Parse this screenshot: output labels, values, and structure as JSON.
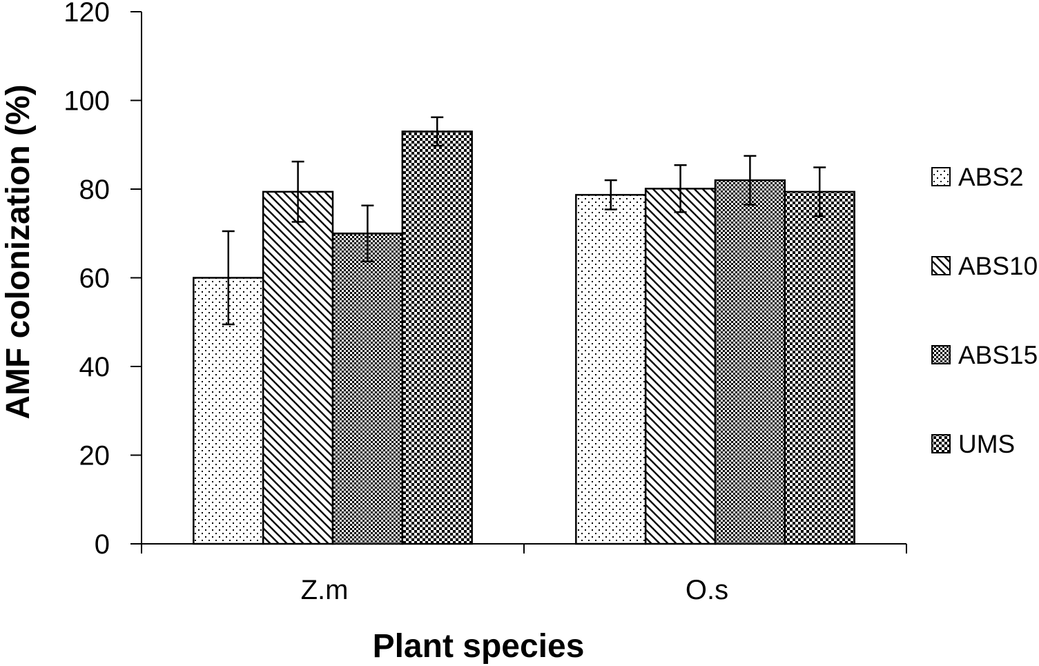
{
  "chart_data": {
    "type": "bar",
    "title": "",
    "xlabel": "Plant species",
    "ylabel": "AMF colonization (%)",
    "ylim": [
      0,
      120
    ],
    "yticks": [
      0,
      20,
      40,
      60,
      80,
      100,
      120
    ],
    "categories": [
      "Z.m",
      "O.s"
    ],
    "series": [
      {
        "name": "ABS2",
        "pattern": "dots",
        "values": [
          60,
          78.7
        ],
        "errors": [
          10.5,
          3.3
        ]
      },
      {
        "name": "ABS10",
        "pattern": "diagonal",
        "values": [
          79.4,
          80.1
        ],
        "errors": [
          6.8,
          5.3
        ]
      },
      {
        "name": "ABS15",
        "pattern": "fine-check",
        "values": [
          70,
          82
        ],
        "errors": [
          6.3,
          5.5
        ]
      },
      {
        "name": "UMS",
        "pattern": "checker",
        "values": [
          93,
          79.4
        ],
        "errors": [
          3.2,
          5.5
        ]
      }
    ],
    "legend_position": "right",
    "grid": false,
    "colors": {
      "bar_stroke": "#000000",
      "pattern_ink": "#000000",
      "background": "#ffffff"
    }
  }
}
